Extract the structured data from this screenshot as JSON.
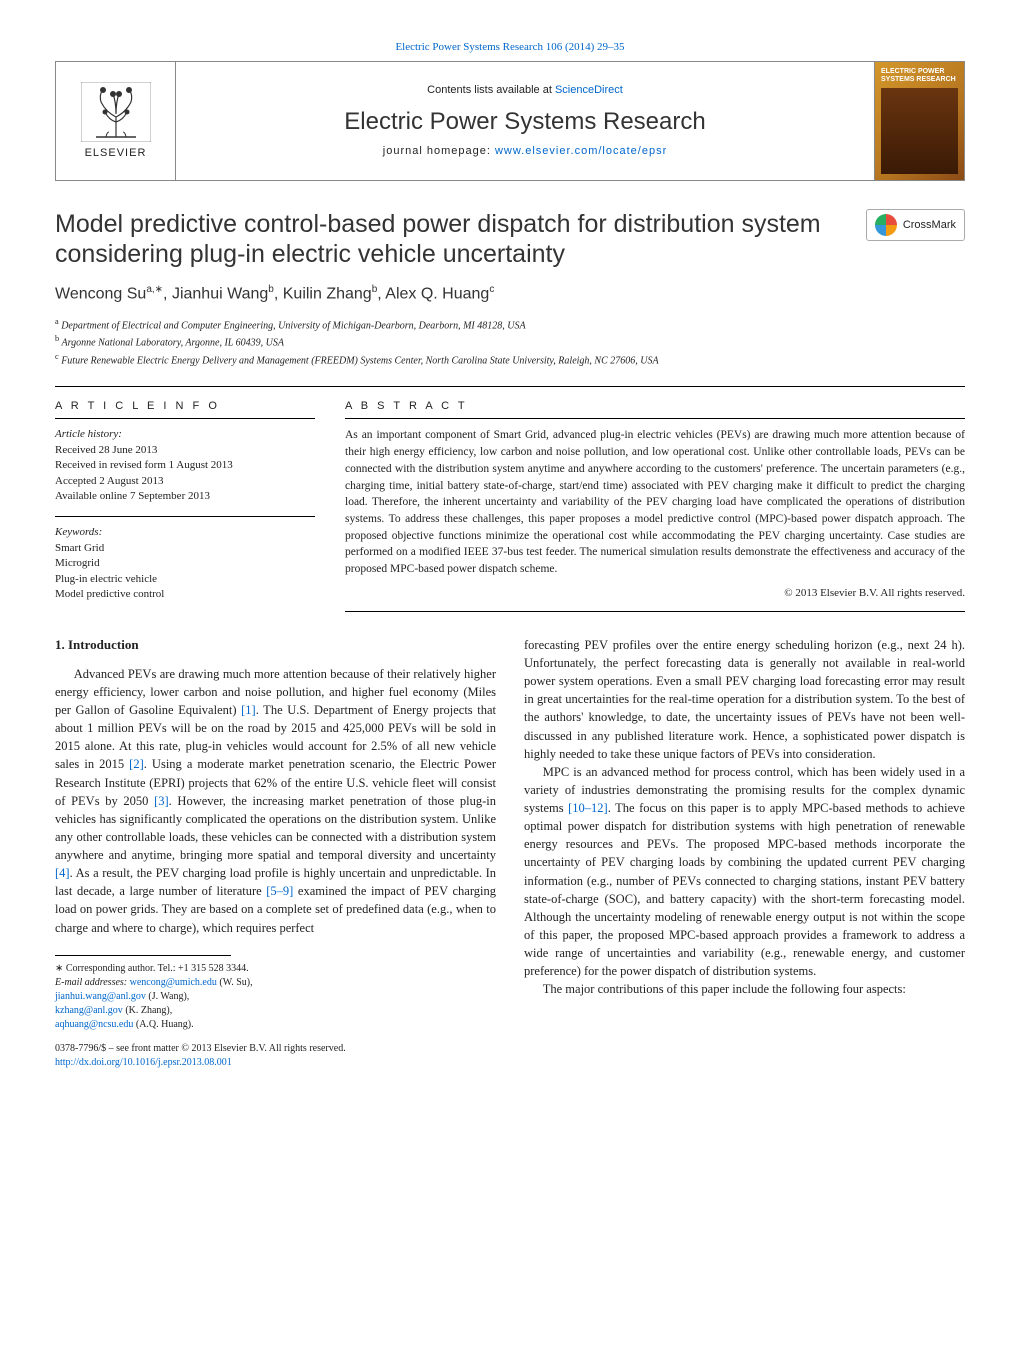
{
  "top_link": "Electric Power Systems Research 106 (2014) 29–35",
  "header": {
    "contents_prefix": "Contents lists available at ",
    "contents_link": "ScienceDirect",
    "journal_name": "Electric Power Systems Research",
    "homepage_prefix": "journal homepage: ",
    "homepage_link": "www.elsevier.com/locate/epsr",
    "publisher": "ELSEVIER",
    "cover_title": "ELECTRIC POWER SYSTEMS RESEARCH"
  },
  "crossmark_label": "CrossMark",
  "title": "Model predictive control-based power dispatch for distribution system considering plug-in electric vehicle uncertainty",
  "authors_html": "Wencong Su<sup>a,∗</sup>, Jianhui Wang<sup>b</sup>, Kuilin Zhang<sup>b</sup>, Alex Q. Huang<sup>c</sup>",
  "affiliations": {
    "a": "Department of Electrical and Computer Engineering, University of Michigan-Dearborn, Dearborn, MI 48128, USA",
    "b": "Argonne National Laboratory, Argonne, IL 60439, USA",
    "c": "Future Renewable Electric Energy Delivery and Management (FREEDM) Systems Center, North Carolina State University, Raleigh, NC 27606, USA"
  },
  "article_info": {
    "heading": "A R T I C L E   I N F O",
    "history_label": "Article history:",
    "history": [
      "Received 28 June 2013",
      "Received in revised form 1 August 2013",
      "Accepted 2 August 2013",
      "Available online 7 September 2013"
    ],
    "keywords_label": "Keywords:",
    "keywords": [
      "Smart Grid",
      "Microgrid",
      "Plug-in electric vehicle",
      "Model predictive control"
    ]
  },
  "abstract": {
    "heading": "A B S T R A C T",
    "text": "As an important component of Smart Grid, advanced plug-in electric vehicles (PEVs) are drawing much more attention because of their high energy efficiency, low carbon and noise pollution, and low operational cost. Unlike other controllable loads, PEVs can be connected with the distribution system anytime and anywhere according to the customers' preference. The uncertain parameters (e.g., charging time, initial battery state-of-charge, start/end time) associated with PEV charging make it difficult to predict the charging load. Therefore, the inherent uncertainty and variability of the PEV charging load have complicated the operations of distribution systems. To address these challenges, this paper proposes a model predictive control (MPC)-based power dispatch approach. The proposed objective functions minimize the operational cost while accommodating the PEV charging uncertainty. Case studies are performed on a modified IEEE 37-bus test feeder. The numerical simulation results demonstrate the effectiveness and accuracy of the proposed MPC-based power dispatch scheme.",
    "copyright": "© 2013 Elsevier B.V. All rights reserved."
  },
  "sections": {
    "intro_heading": "1.  Introduction",
    "col1_p1_a": "Advanced PEVs are drawing much more attention because of their relatively higher energy efficiency, lower carbon and noise pollution, and higher fuel economy (Miles per Gallon of Gasoline Equivalent) ",
    "ref1": "[1]",
    "col1_p1_b": ". The U.S. Department of Energy projects that about 1 million PEVs will be on the road by 2015 and 425,000 PEVs will be sold in 2015 alone. At this rate, plug-in vehicles would account for 2.5% of all new vehicle sales in 2015 ",
    "ref2": "[2]",
    "col1_p1_c": ". Using a moderate market penetration scenario, the Electric Power Research Institute (EPRI) projects that 62% of the entire U.S. vehicle fleet will consist of PEVs by 2050 ",
    "ref3": "[3]",
    "col1_p1_d": ". However, the increasing market penetration of those plug-in vehicles has significantly complicated the operations on the distribution system. Unlike any other controllable loads, these vehicles can be connected with a distribution system anywhere and anytime, bringing more spatial and temporal diversity and uncertainty ",
    "ref4": "[4]",
    "col1_p1_e": ". As a result, the PEV charging load profile is highly uncertain and unpredictable. In last decade, a large number of literature ",
    "ref5_9": "[5–9]",
    "col1_p1_f": " examined the impact of PEV charging load on power grids. They are based on a complete set of predefined data (e.g., when to charge and where to charge), which requires perfect",
    "col2_p1": "forecasting PEV profiles over the entire energy scheduling horizon (e.g., next 24 h). Unfortunately, the perfect forecasting data is generally not available in real-world power system operations. Even a small PEV charging load forecasting error may result in great uncertainties for the real-time operation for a distribution system. To the best of the authors' knowledge, to date, the uncertainty issues of PEVs have not been well-discussed in any published literature work. Hence, a sophisticated power dispatch is highly needed to take these unique factors of PEVs into consideration.",
    "col2_p2_a": "MPC is an advanced method for process control, which has been widely used in a variety of industries demonstrating the promising results for the complex dynamic systems ",
    "ref10_12": "[10–12]",
    "col2_p2_b": ". The focus on this paper is to apply MPC-based methods to achieve optimal power dispatch for distribution systems with high penetration of renewable energy resources and PEVs. The proposed MPC-based methods incorporate the uncertainty of PEV charging loads by combining the updated current PEV charging information (e.g., number of PEVs connected to charging stations, instant PEV battery state-of-charge (SOC), and battery capacity) with the short-term forecasting model. Although the uncertainty modeling of renewable energy output is not within the scope of this paper, the proposed MPC-based approach provides a framework to address a wide range of uncertainties and variability (e.g., renewable energy, and customer preference) for the power dispatch of distribution systems.",
    "col2_p3": "The major contributions of this paper include the following four aspects:"
  },
  "footnotes": {
    "corr": "∗ Corresponding author. Tel.: +1 315 528 3344.",
    "email_label": "E-mail addresses: ",
    "emails": [
      {
        "addr": "wencong@umich.edu",
        "who": " (W. Su),"
      },
      {
        "addr": "jianhui.wang@anl.gov",
        "who": " (J. Wang), "
      },
      {
        "addr": "kzhang@anl.gov",
        "who": " (K. Zhang),"
      },
      {
        "addr": "aqhuang@ncsu.edu",
        "who": " (A.Q. Huang)."
      }
    ]
  },
  "footer": {
    "line1": "0378-7796/$ – see front matter © 2013 Elsevier B.V. All rights reserved.",
    "doi": "http://dx.doi.org/10.1016/j.epsr.2013.08.001"
  },
  "colors": {
    "link": "#0066cc",
    "text": "#222222",
    "rule": "#000000",
    "cover_grad_a": "#d4972a",
    "cover_grad_b": "#8a4a15"
  }
}
